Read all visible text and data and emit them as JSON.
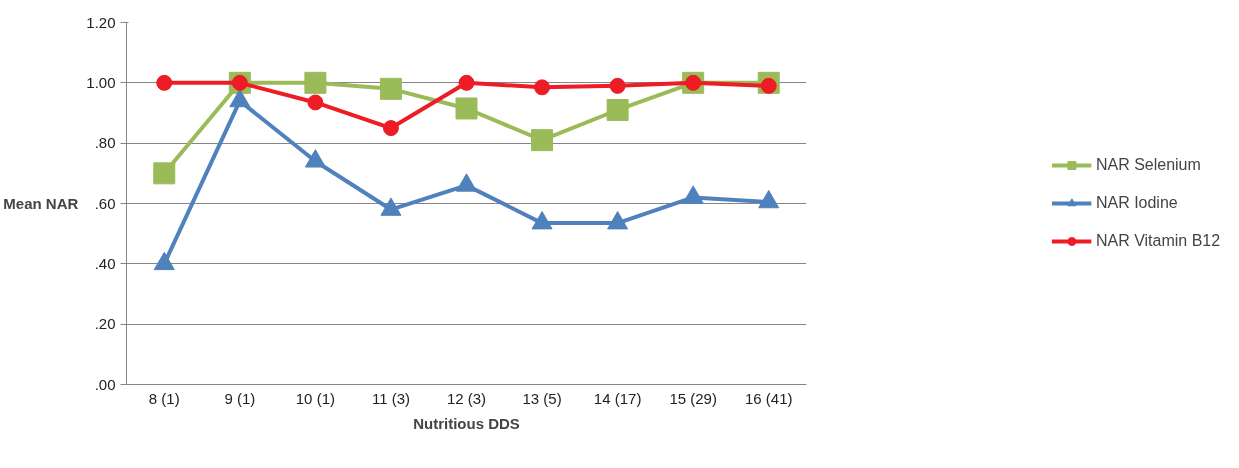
{
  "chart_data": {
    "type": "line",
    "xlabel": "Nutritious DDS",
    "ylabel": "Mean NAR",
    "categories": [
      "8 (1)",
      "9 (1)",
      "10 (1)",
      "11 (3)",
      "12 (3)",
      "13 (5)",
      "14 (17)",
      "15 (29)",
      "16 (41)"
    ],
    "series": [
      {
        "name": "NAR Selenium",
        "color": "#9bbb59",
        "marker": "square",
        "values": [
          0.7,
          1.0,
          1.0,
          0.98,
          0.915,
          0.81,
          0.91,
          1.0,
          1.0
        ]
      },
      {
        "name": "NAR Iodine",
        "color": "#4f81bd",
        "marker": "triangle",
        "values": [
          0.4,
          0.94,
          0.74,
          0.58,
          0.66,
          0.535,
          0.535,
          0.62,
          0.605
        ]
      },
      {
        "name": "NAR Vitamin B12",
        "color": "#ee1c25",
        "marker": "circle",
        "values": [
          1.0,
          1.0,
          0.935,
          0.85,
          1.0,
          0.985,
          0.99,
          1.0,
          0.99
        ]
      }
    ],
    "ylim": [
      0,
      1.2
    ],
    "yticks": [
      {
        "value": 0,
        "label": ".00"
      },
      {
        "value": 0.2,
        "label": ".20"
      },
      {
        "value": 0.4,
        "label": ".40"
      },
      {
        "value": 0.6,
        "label": ".60"
      },
      {
        "value": 0.8,
        "label": ".80"
      },
      {
        "value": 1.0,
        "label": "1.00"
      },
      {
        "value": 1.2,
        "label": "1.20"
      }
    ],
    "grid": "y",
    "legend": "right",
    "line_style": "solid"
  }
}
